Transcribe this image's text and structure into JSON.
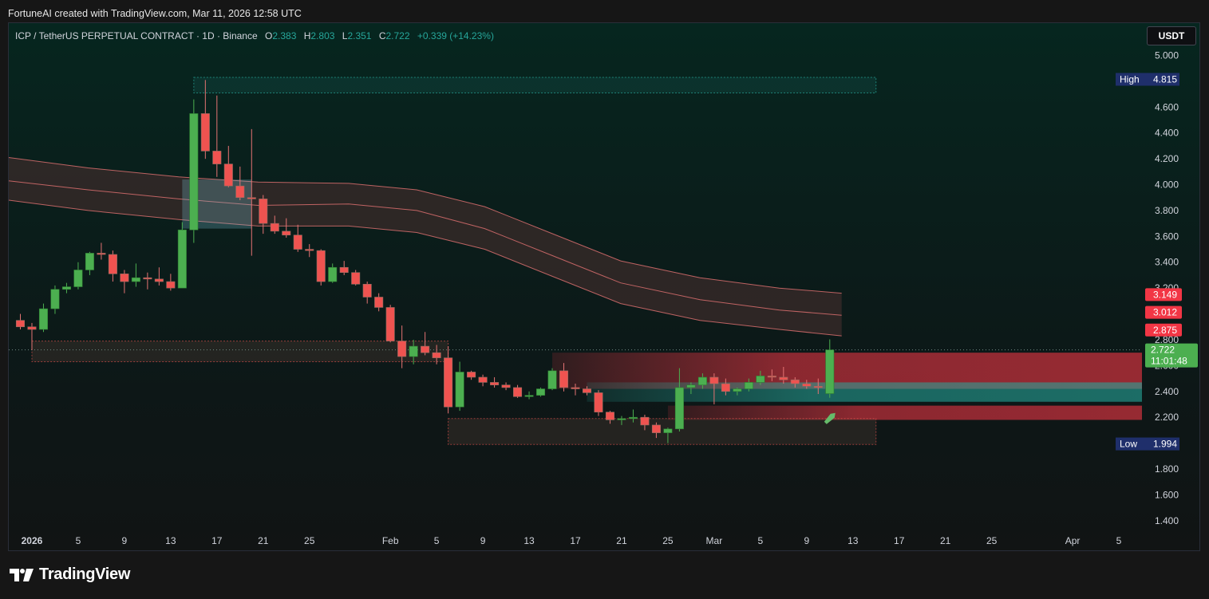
{
  "caption": "FortuneAI created with TradingView.com, Mar 11, 2026 12:58 UTC",
  "brand": "TradingView",
  "currency": "USDT",
  "legend": {
    "symbol": "ICP / TetherUS PERPETUAL CONTRACT · 1D · Binance",
    "o_label": "O",
    "o": "2.383",
    "h_label": "H",
    "h": "2.803",
    "l_label": "L",
    "l": "2.351",
    "c_label": "C",
    "c": "2.722",
    "change": "+0.339 (+14.23%)"
  },
  "colors": {
    "up": "#4caf50",
    "down": "#ef5350",
    "background": "#0b1a18",
    "band_fill": "#3a2b29",
    "band_line": "#e57373",
    "zone_green": "#26a69a",
    "zone_red": "#f23645",
    "high_low_tag": "#1f2f6b"
  },
  "chart_data": {
    "type": "candlestick",
    "title": "ICP / TetherUS PERPETUAL CONTRACT · 1D · Binance",
    "y_axis": {
      "range": [
        1.3,
        5.25
      ],
      "ticks": [
        "5.000",
        "4.800",
        "4.600",
        "4.400",
        "4.200",
        "4.000",
        "3.800",
        "3.600",
        "3.400",
        "3.200",
        "3.000",
        "2.800",
        "2.600",
        "2.400",
        "2.200",
        "2.000",
        "1.800",
        "1.600",
        "1.400"
      ]
    },
    "x_axis": {
      "first_day": "2025-12-30",
      "last_day": "2026-04-07",
      "ticks": [
        {
          "day": "2026-01-01",
          "label": "2026",
          "bold": true
        },
        {
          "day": "2026-01-05",
          "label": "5"
        },
        {
          "day": "2026-01-09",
          "label": "9"
        },
        {
          "day": "2026-01-13",
          "label": "13"
        },
        {
          "day": "2026-01-17",
          "label": "17"
        },
        {
          "day": "2026-01-21",
          "label": "21"
        },
        {
          "day": "2026-01-25",
          "label": "25"
        },
        {
          "day": "2026-02-01",
          "label": "Feb"
        },
        {
          "day": "2026-02-05",
          "label": "5"
        },
        {
          "day": "2026-02-09",
          "label": "9"
        },
        {
          "day": "2026-02-13",
          "label": "13"
        },
        {
          "day": "2026-02-17",
          "label": "17"
        },
        {
          "day": "2026-02-21",
          "label": "21"
        },
        {
          "day": "2026-02-25",
          "label": "25"
        },
        {
          "day": "2026-03-01",
          "label": "Mar"
        },
        {
          "day": "2026-03-05",
          "label": "5"
        },
        {
          "day": "2026-03-09",
          "label": "9"
        },
        {
          "day": "2026-03-13",
          "label": "13"
        },
        {
          "day": "2026-03-17",
          "label": "17"
        },
        {
          "day": "2026-03-21",
          "label": "21"
        },
        {
          "day": "2026-03-25",
          "label": "25"
        },
        {
          "day": "2026-04-01",
          "label": "Apr"
        },
        {
          "day": "2026-04-05",
          "label": "5"
        }
      ]
    },
    "candles": [
      {
        "d": "2025-12-31",
        "o": 2.95,
        "h": 3.0,
        "l": 2.88,
        "c": 2.9
      },
      {
        "d": "2026-01-01",
        "o": 2.9,
        "h": 2.93,
        "l": 2.72,
        "c": 2.88
      },
      {
        "d": "2026-01-02",
        "o": 2.88,
        "h": 3.08,
        "l": 2.86,
        "c": 3.04
      },
      {
        "d": "2026-01-03",
        "o": 3.04,
        "h": 3.22,
        "l": 3.0,
        "c": 3.19
      },
      {
        "d": "2026-01-04",
        "o": 3.19,
        "h": 3.24,
        "l": 3.16,
        "c": 3.21
      },
      {
        "d": "2026-01-05",
        "o": 3.21,
        "h": 3.4,
        "l": 3.19,
        "c": 3.34
      },
      {
        "d": "2026-01-06",
        "o": 3.34,
        "h": 3.48,
        "l": 3.3,
        "c": 3.47
      },
      {
        "d": "2026-01-07",
        "o": 3.47,
        "h": 3.55,
        "l": 3.42,
        "c": 3.46
      },
      {
        "d": "2026-01-08",
        "o": 3.46,
        "h": 3.49,
        "l": 3.25,
        "c": 3.31
      },
      {
        "d": "2026-01-09",
        "o": 3.31,
        "h": 3.34,
        "l": 3.16,
        "c": 3.25
      },
      {
        "d": "2026-01-10",
        "o": 3.25,
        "h": 3.39,
        "l": 3.21,
        "c": 3.28
      },
      {
        "d": "2026-01-11",
        "o": 3.28,
        "h": 3.32,
        "l": 3.19,
        "c": 3.27
      },
      {
        "d": "2026-01-12",
        "o": 3.27,
        "h": 3.36,
        "l": 3.22,
        "c": 3.25
      },
      {
        "d": "2026-01-13",
        "o": 3.25,
        "h": 3.31,
        "l": 3.18,
        "c": 3.2
      },
      {
        "d": "2026-01-14",
        "o": 3.2,
        "h": 3.71,
        "l": 3.2,
        "c": 3.65
      },
      {
        "d": "2026-01-15",
        "o": 3.65,
        "h": 4.66,
        "l": 3.55,
        "c": 4.55
      },
      {
        "d": "2026-01-16",
        "o": 4.55,
        "h": 4.81,
        "l": 4.2,
        "c": 4.26
      },
      {
        "d": "2026-01-17",
        "o": 4.26,
        "h": 4.69,
        "l": 4.06,
        "c": 4.16
      },
      {
        "d": "2026-01-18",
        "o": 4.16,
        "h": 4.3,
        "l": 3.98,
        "c": 3.99
      },
      {
        "d": "2026-01-19",
        "o": 3.99,
        "h": 4.14,
        "l": 3.88,
        "c": 3.9
      },
      {
        "d": "2026-01-20",
        "o": 3.9,
        "h": 4.43,
        "l": 3.45,
        "c": 3.89
      },
      {
        "d": "2026-01-21",
        "o": 3.89,
        "h": 3.92,
        "l": 3.62,
        "c": 3.7
      },
      {
        "d": "2026-01-22",
        "o": 3.7,
        "h": 3.76,
        "l": 3.62,
        "c": 3.64
      },
      {
        "d": "2026-01-23",
        "o": 3.64,
        "h": 3.74,
        "l": 3.59,
        "c": 3.61
      },
      {
        "d": "2026-01-24",
        "o": 3.61,
        "h": 3.69,
        "l": 3.48,
        "c": 3.5
      },
      {
        "d": "2026-01-25",
        "o": 3.5,
        "h": 3.54,
        "l": 3.44,
        "c": 3.49
      },
      {
        "d": "2026-01-26",
        "o": 3.49,
        "h": 3.5,
        "l": 3.22,
        "c": 3.25
      },
      {
        "d": "2026-01-27",
        "o": 3.25,
        "h": 3.39,
        "l": 3.24,
        "c": 3.36
      },
      {
        "d": "2026-01-28",
        "o": 3.36,
        "h": 3.41,
        "l": 3.3,
        "c": 3.32
      },
      {
        "d": "2026-01-29",
        "o": 3.32,
        "h": 3.34,
        "l": 3.22,
        "c": 3.23
      },
      {
        "d": "2026-01-30",
        "o": 3.23,
        "h": 3.25,
        "l": 3.08,
        "c": 3.13
      },
      {
        "d": "2026-01-31",
        "o": 3.13,
        "h": 3.16,
        "l": 3.02,
        "c": 3.05
      },
      {
        "d": "2026-02-01",
        "o": 3.05,
        "h": 3.07,
        "l": 2.78,
        "c": 2.79
      },
      {
        "d": "2026-02-02",
        "o": 2.79,
        "h": 2.91,
        "l": 2.58,
        "c": 2.67
      },
      {
        "d": "2026-02-03",
        "o": 2.67,
        "h": 2.8,
        "l": 2.61,
        "c": 2.75
      },
      {
        "d": "2026-02-04",
        "o": 2.75,
        "h": 2.86,
        "l": 2.68,
        "c": 2.7
      },
      {
        "d": "2026-02-05",
        "o": 2.7,
        "h": 2.76,
        "l": 2.61,
        "c": 2.66
      },
      {
        "d": "2026-02-06",
        "o": 2.66,
        "h": 2.75,
        "l": 2.23,
        "c": 2.28
      },
      {
        "d": "2026-02-07",
        "o": 2.28,
        "h": 2.63,
        "l": 2.25,
        "c": 2.55
      },
      {
        "d": "2026-02-08",
        "o": 2.55,
        "h": 2.56,
        "l": 2.49,
        "c": 2.51
      },
      {
        "d": "2026-02-09",
        "o": 2.51,
        "h": 2.53,
        "l": 2.44,
        "c": 2.47
      },
      {
        "d": "2026-02-10",
        "o": 2.47,
        "h": 2.51,
        "l": 2.43,
        "c": 2.45
      },
      {
        "d": "2026-02-11",
        "o": 2.45,
        "h": 2.47,
        "l": 2.41,
        "c": 2.43
      },
      {
        "d": "2026-02-12",
        "o": 2.43,
        "h": 2.45,
        "l": 2.35,
        "c": 2.36
      },
      {
        "d": "2026-02-13",
        "o": 2.36,
        "h": 2.4,
        "l": 2.34,
        "c": 2.37
      },
      {
        "d": "2026-02-14",
        "o": 2.37,
        "h": 2.43,
        "l": 2.36,
        "c": 2.42
      },
      {
        "d": "2026-02-15",
        "o": 2.42,
        "h": 2.58,
        "l": 2.41,
        "c": 2.56
      },
      {
        "d": "2026-02-16",
        "o": 2.56,
        "h": 2.62,
        "l": 2.4,
        "c": 2.43
      },
      {
        "d": "2026-02-17",
        "o": 2.43,
        "h": 2.46,
        "l": 2.37,
        "c": 2.42
      },
      {
        "d": "2026-02-18",
        "o": 2.42,
        "h": 2.44,
        "l": 2.37,
        "c": 2.39
      },
      {
        "d": "2026-02-19",
        "o": 2.39,
        "h": 2.41,
        "l": 2.21,
        "c": 2.24
      },
      {
        "d": "2026-02-20",
        "o": 2.24,
        "h": 2.25,
        "l": 2.15,
        "c": 2.18
      },
      {
        "d": "2026-02-21",
        "o": 2.18,
        "h": 2.21,
        "l": 2.14,
        "c": 2.19
      },
      {
        "d": "2026-02-22",
        "o": 2.19,
        "h": 2.26,
        "l": 2.16,
        "c": 2.2
      },
      {
        "d": "2026-02-23",
        "o": 2.2,
        "h": 2.22,
        "l": 2.1,
        "c": 2.14
      },
      {
        "d": "2026-02-24",
        "o": 2.14,
        "h": 2.16,
        "l": 2.04,
        "c": 2.08
      },
      {
        "d": "2026-02-25",
        "o": 2.08,
        "h": 2.12,
        "l": 2.0,
        "c": 2.11
      },
      {
        "d": "2026-02-26",
        "o": 2.11,
        "h": 2.58,
        "l": 2.09,
        "c": 2.43
      },
      {
        "d": "2026-02-27",
        "o": 2.43,
        "h": 2.47,
        "l": 2.38,
        "c": 2.45
      },
      {
        "d": "2026-02-28",
        "o": 2.45,
        "h": 2.54,
        "l": 2.42,
        "c": 2.51
      },
      {
        "d": "2026-03-01",
        "o": 2.51,
        "h": 2.54,
        "l": 2.3,
        "c": 2.46
      },
      {
        "d": "2026-03-02",
        "o": 2.46,
        "h": 2.5,
        "l": 2.37,
        "c": 2.4
      },
      {
        "d": "2026-03-03",
        "o": 2.4,
        "h": 2.43,
        "l": 2.37,
        "c": 2.42
      },
      {
        "d": "2026-03-04",
        "o": 2.42,
        "h": 2.5,
        "l": 2.4,
        "c": 2.47
      },
      {
        "d": "2026-03-05",
        "o": 2.47,
        "h": 2.56,
        "l": 2.45,
        "c": 2.52
      },
      {
        "d": "2026-03-06",
        "o": 2.52,
        "h": 2.57,
        "l": 2.48,
        "c": 2.51
      },
      {
        "d": "2026-03-07",
        "o": 2.51,
        "h": 2.59,
        "l": 2.46,
        "c": 2.49
      },
      {
        "d": "2026-03-08",
        "o": 2.49,
        "h": 2.51,
        "l": 2.43,
        "c": 2.46
      },
      {
        "d": "2026-03-09",
        "o": 2.46,
        "h": 2.49,
        "l": 2.42,
        "c": 2.44
      },
      {
        "d": "2026-03-10",
        "o": 2.44,
        "h": 2.5,
        "l": 2.38,
        "c": 2.43
      },
      {
        "d": "2026-03-11",
        "o": 2.383,
        "h": 2.803,
        "l": 2.351,
        "c": 2.722
      }
    ],
    "overlays": {
      "ema_band_upper": [
        [
          0.0,
          4.21
        ],
        [
          0.07,
          4.13
        ],
        [
          0.15,
          4.06
        ],
        [
          0.22,
          4.02
        ],
        [
          0.3,
          4.01
        ],
        [
          0.36,
          3.96
        ],
        [
          0.42,
          3.83
        ],
        [
          0.48,
          3.62
        ],
        [
          0.54,
          3.41
        ],
        [
          0.61,
          3.28
        ],
        [
          0.68,
          3.2
        ],
        [
          0.735,
          3.16
        ]
      ],
      "ema_band_lower": [
        [
          0.0,
          3.88
        ],
        [
          0.07,
          3.8
        ],
        [
          0.15,
          3.73
        ],
        [
          0.22,
          3.68
        ],
        [
          0.3,
          3.68
        ],
        [
          0.36,
          3.63
        ],
        [
          0.42,
          3.5
        ],
        [
          0.48,
          3.29
        ],
        [
          0.54,
          3.08
        ],
        [
          0.61,
          2.95
        ],
        [
          0.68,
          2.88
        ],
        [
          0.735,
          2.83
        ]
      ],
      "ema_band_mid": [
        [
          0.0,
          4.03
        ],
        [
          0.07,
          3.96
        ],
        [
          0.15,
          3.89
        ],
        [
          0.22,
          3.84
        ],
        [
          0.3,
          3.85
        ],
        [
          0.36,
          3.8
        ],
        [
          0.42,
          3.66
        ],
        [
          0.48,
          3.45
        ],
        [
          0.54,
          3.24
        ],
        [
          0.61,
          3.11
        ],
        [
          0.68,
          3.03
        ],
        [
          0.735,
          2.99
        ]
      ],
      "highlight_box_span": [
        {
          "from": "2026-01-14",
          "to": "2026-01-20",
          "top": 4.04,
          "bottom": 3.66
        }
      ],
      "top_resistance_box": {
        "from": "2026-01-15",
        "to": "2026-03-15",
        "top": 4.83,
        "bottom": 4.71
      },
      "mid_zone_box": {
        "from": "2026-01-01",
        "to": "2026-02-06",
        "top": 2.79,
        "bottom": 2.63
      },
      "bottom_zone_box": {
        "from": "2026-02-06",
        "to": "2026-03-15",
        "top": 2.19,
        "bottom": 1.99
      },
      "heat_zone_red": {
        "from": "2026-02-15",
        "to": "2026-04-07",
        "top": 2.7,
        "bottom": 2.42
      },
      "heat_zone_green": {
        "from": "2026-02-18",
        "to": "2026-04-07",
        "top": 2.47,
        "bottom": 2.32
      },
      "heat_zone_red_low": {
        "from": "2026-02-25",
        "to": "2026-04-07",
        "top": 2.29,
        "bottom": 2.18
      },
      "current_price_line": 2.722
    },
    "price_tags": [
      {
        "label": "High",
        "value": "4.815",
        "price": 4.815,
        "style": "highlow"
      },
      {
        "value": "3.149",
        "price": 3.149,
        "style": "red"
      },
      {
        "value": "3.012",
        "price": 3.012,
        "style": "red"
      },
      {
        "value": "2.875",
        "price": 2.875,
        "style": "red"
      },
      {
        "value": "2.722",
        "sub": "11:01:48",
        "price": 2.722,
        "style": "green"
      },
      {
        "label": "Low",
        "value": "1.994",
        "price": 1.994,
        "style": "highlow"
      }
    ]
  }
}
